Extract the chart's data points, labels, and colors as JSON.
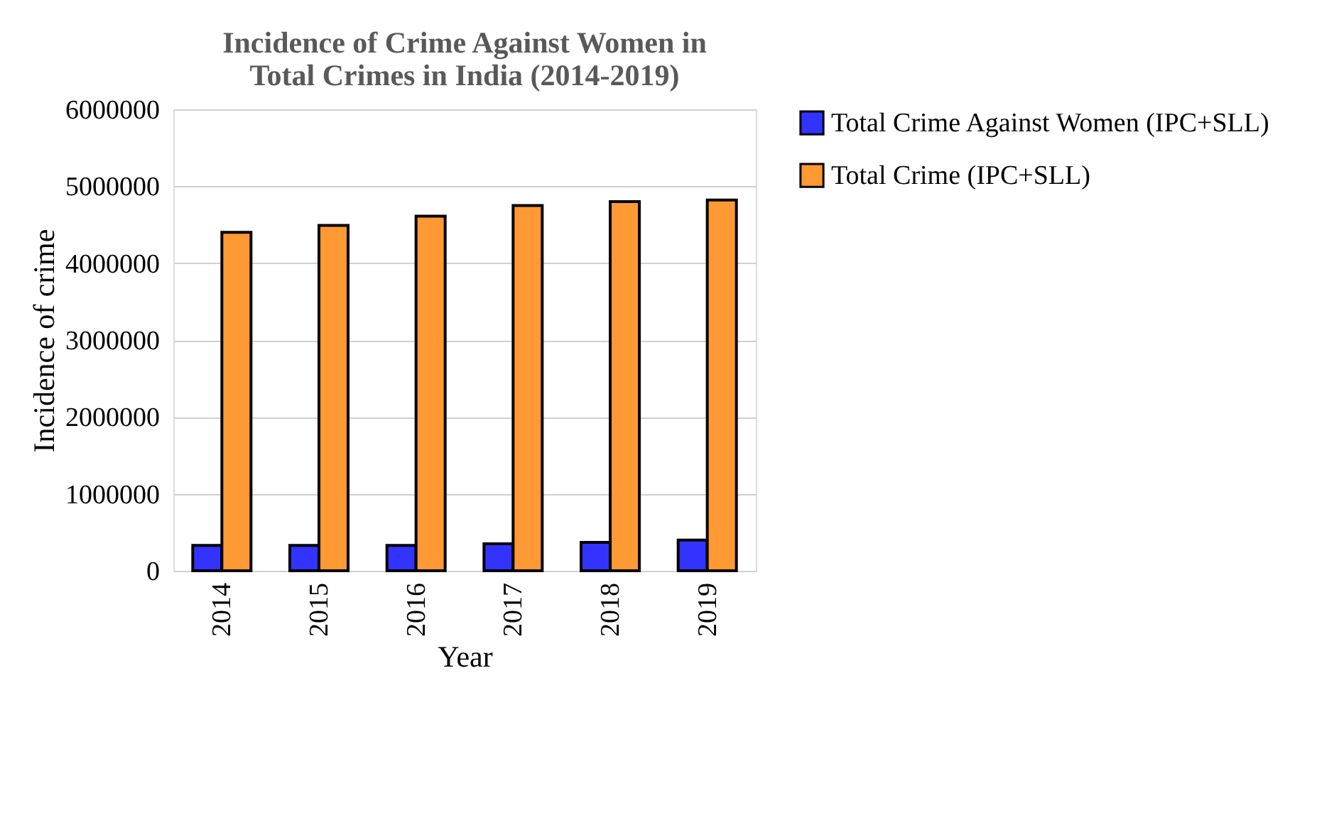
{
  "chart_data": {
    "type": "bar",
    "title": "Incidence of Crime Against Women in Total Crimes in India (2014-2019)",
    "xlabel": "Year",
    "ylabel": "Incidence of crime",
    "categories": [
      "2014",
      "2015",
      "2016",
      "2017",
      "2018",
      "2019"
    ],
    "series": [
      {
        "name": "Total Crime Against Women (IPC+SLL)",
        "color": "#3333ff",
        "values": [
          330000,
          330000,
          330000,
          350000,
          370000,
          400000
        ]
      },
      {
        "name": "Total Crime (IPC+SLL)",
        "color": "#ff9933",
        "values": [
          4400000,
          4490000,
          4610000,
          4750000,
          4800000,
          4820000
        ]
      }
    ],
    "ylim": [
      0,
      6000000
    ],
    "yticks": [
      0,
      1000000,
      2000000,
      3000000,
      4000000,
      5000000,
      6000000
    ],
    "grid": "y",
    "legend": "right"
  }
}
